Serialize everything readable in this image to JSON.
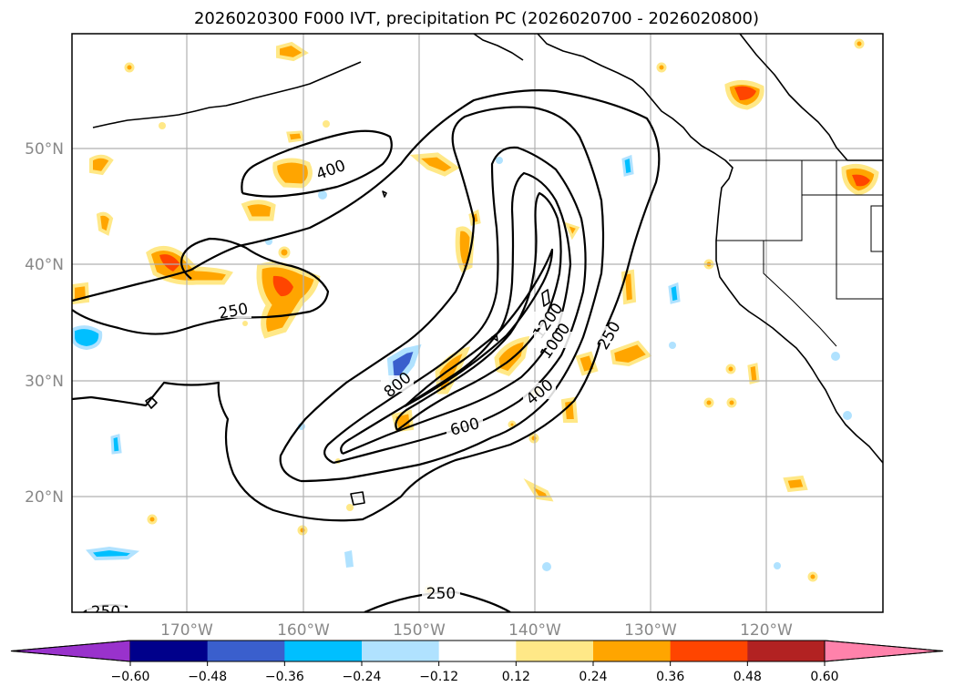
{
  "title": "2026020300 F000 IVT, precipitation PC (2026020700 - 2026020800)",
  "lat_labels": [
    "50°N",
    "40°N",
    "30°N",
    "20°N"
  ],
  "lon_labels": [
    "170°W",
    "160°W",
    "150°W",
    "140°W",
    "130°W",
    "120°W"
  ],
  "colorbar": {
    "ticks": [
      "−0.60",
      "−0.48",
      "−0.36",
      "−0.24",
      "−0.12",
      "0.12",
      "0.24",
      "0.36",
      "0.48",
      "0.60"
    ],
    "colors": [
      "#9932cc",
      "#00008b",
      "#3a5fcd",
      "#00bfff",
      "#b0e2ff",
      "#ffffff",
      "#ffe887",
      "#ffa500",
      "#ff4500",
      "#b22222",
      "#ff82ab"
    ]
  },
  "ivt_contour_labels": [
    "400",
    "250",
    "800",
    "600",
    "1200",
    "1000",
    "400",
    "250",
    "250",
    "250"
  ],
  "colors": {
    "frame": "#000000",
    "grid": "#b0b0b0",
    "axis_label": "#888888"
  }
}
